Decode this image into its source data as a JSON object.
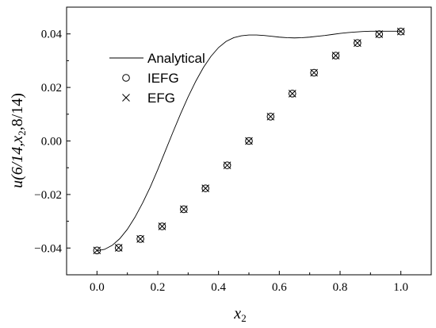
{
  "chart_data": {
    "type": "line",
    "xlim": [
      -0.1,
      1.1
    ],
    "ylim": [
      -0.05,
      0.05
    ],
    "x_ticks": [
      0.0,
      0.2,
      0.4,
      0.6,
      0.8,
      1.0
    ],
    "x_tick_labels": [
      "0.0",
      "0.2",
      "0.4",
      "0.6",
      "0.8",
      "1.0"
    ],
    "y_ticks": [
      -0.04,
      -0.02,
      0.0,
      0.02,
      0.04
    ],
    "y_tick_labels": [
      "−0.04",
      "−0.02",
      "0.00",
      "0.02",
      "0.04"
    ],
    "xlabel": {
      "main": "x",
      "sub": "2"
    },
    "ylabel": {
      "p1": "u(6/14,",
      "x": "x",
      "sub": "2",
      "p2": ",8/14)"
    },
    "legend": {
      "placement": "top-left",
      "entries": [
        "Analytical",
        "IEFG",
        "EFG"
      ]
    },
    "series": [
      {
        "name": "Analytical",
        "style": "line",
        "x": [
          0,
          0.025,
          0.05,
          0.075,
          0.1,
          0.125,
          0.15,
          0.175,
          0.2,
          0.225,
          0.25,
          0.275,
          0.3,
          0.325,
          0.35,
          0.375,
          0.4,
          0.425,
          0.45,
          0.475,
          0.5,
          0.525,
          0.55,
          0.575,
          0.6,
          0.625,
          0.65,
          0.675,
          0.7,
          0.725,
          0.75,
          0.775,
          0.8,
          0.825,
          0.85,
          0.875,
          0.9,
          0.925,
          0.95,
          0.975,
          1.0
        ],
        "y": [
          -0.041,
          -0.0405,
          -0.039,
          -0.0365,
          -0.033,
          -0.0285,
          -0.0232,
          -0.0173,
          -0.0107,
          -0.0037,
          0.0033,
          0.0101,
          0.0165,
          0.0223,
          0.0274,
          0.0316,
          0.0349,
          0.0372,
          0.0386,
          0.0393,
          0.0396,
          0.0396,
          0.0394,
          0.0391,
          0.0388,
          0.0386,
          0.0385,
          0.0386,
          0.0388,
          0.0391,
          0.0394,
          0.0398,
          0.0402,
          0.0405,
          0.0407,
          0.0409,
          0.041,
          0.041,
          0.041,
          0.041,
          0.041
        ]
      },
      {
        "name": "IEFG",
        "style": "circle",
        "x": [
          0.0,
          0.0714,
          0.1429,
          0.2143,
          0.2857,
          0.3571,
          0.4286,
          0.5,
          0.5714,
          0.6429,
          0.7143,
          0.7857,
          0.8571,
          0.9286,
          1.0
        ],
        "y": [
          -0.0409,
          -0.0399,
          -0.0366,
          -0.0319,
          -0.0255,
          -0.0177,
          -0.0091,
          0.0,
          0.0091,
          0.0177,
          0.0255,
          0.0319,
          0.0366,
          0.0399,
          0.0409
        ]
      },
      {
        "name": "EFG",
        "style": "cross",
        "x": [
          0.0,
          0.0714,
          0.1429,
          0.2143,
          0.2857,
          0.3571,
          0.4286,
          0.5,
          0.5714,
          0.6429,
          0.7143,
          0.7857,
          0.8571,
          0.9286,
          1.0
        ],
        "y": [
          -0.0409,
          -0.0399,
          -0.0366,
          -0.0319,
          -0.0255,
          -0.0177,
          -0.0091,
          0.0,
          0.0091,
          0.0177,
          0.0255,
          0.0319,
          0.0366,
          0.0399,
          0.0409
        ]
      }
    ]
  }
}
